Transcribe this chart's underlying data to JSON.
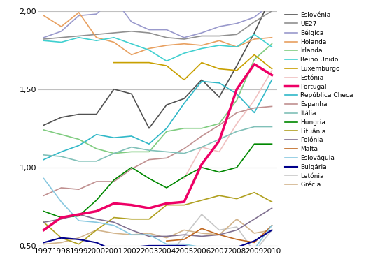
{
  "years": [
    1997,
    1998,
    1999,
    2000,
    2001,
    2002,
    2003,
    2004,
    2005,
    2006,
    2007,
    2008,
    2009,
    2010
  ],
  "series": [
    {
      "name": "Eslovénia",
      "values": [
        1.27,
        1.32,
        1.34,
        1.34,
        1.5,
        1.47,
        1.25,
        1.4,
        1.44,
        1.56,
        1.45,
        1.65,
        1.86,
        2.1
      ],
      "color": "#505050",
      "lw": 1.2,
      "zorder": 3
    },
    {
      "name": "UE27",
      "values": [
        1.82,
        1.83,
        1.84,
        1.85,
        1.86,
        1.87,
        1.86,
        1.83,
        1.82,
        1.84,
        1.84,
        1.85,
        1.93,
        2.0
      ],
      "color": "#909090",
      "lw": 1.2,
      "zorder": 3
    },
    {
      "name": "Bélgica",
      "values": [
        1.83,
        1.87,
        1.97,
        1.98,
        2.08,
        1.93,
        1.88,
        1.88,
        1.83,
        1.86,
        1.9,
        1.92,
        1.96,
        2.05
      ],
      "color": "#9999cc",
      "lw": 1.2,
      "zorder": 3
    },
    {
      "name": "Holanda",
      "values": [
        1.97,
        1.9,
        1.99,
        1.83,
        1.8,
        1.72,
        1.76,
        1.78,
        1.79,
        1.78,
        1.81,
        1.77,
        1.82,
        1.83
      ],
      "color": "#e8a060",
      "lw": 1.2,
      "zorder": 3
    },
    {
      "name": "Irlanda",
      "values": [
        1.24,
        1.21,
        1.18,
        1.12,
        1.09,
        1.1,
        1.1,
        1.23,
        1.25,
        1.25,
        1.28,
        1.43,
        1.69,
        1.79
      ],
      "color": "#80cc80",
      "lw": 1.2,
      "zorder": 3
    },
    {
      "name": "Reino Unido",
      "values": [
        1.81,
        1.8,
        1.83,
        1.81,
        1.83,
        1.79,
        1.75,
        1.68,
        1.73,
        1.76,
        1.78,
        1.77,
        1.85,
        1.77
      ],
      "color": "#40d0d0",
      "lw": 1.2,
      "zorder": 3
    },
    {
      "name": "Luxemburgo",
      "values": [
        null,
        null,
        null,
        null,
        1.67,
        1.67,
        1.67,
        1.65,
        1.56,
        1.67,
        1.63,
        1.62,
        1.72,
        1.63
      ],
      "color": "#c8a000",
      "lw": 1.2,
      "zorder": 3
    },
    {
      "name": "Estónia",
      "values": [
        null,
        null,
        null,
        null,
        null,
        null,
        null,
        null,
        0.93,
        1.13,
        1.1,
        1.28,
        1.43,
        1.62
      ],
      "color": "#f0c0c0",
      "lw": 1.2,
      "zorder": 2
    },
    {
      "name": "Portugal",
      "values": [
        0.6,
        0.68,
        0.7,
        0.72,
        0.77,
        0.76,
        0.74,
        0.77,
        0.78,
        1.02,
        1.17,
        1.5,
        1.66,
        1.59
      ],
      "color": "#ee0066",
      "lw": 2.5,
      "zorder": 5
    },
    {
      "name": "República Checa",
      "values": [
        1.05,
        1.1,
        1.14,
        1.21,
        1.19,
        1.2,
        1.15,
        1.25,
        1.41,
        1.55,
        1.54,
        1.47,
        1.35,
        1.56
      ],
      "color": "#30b8c8",
      "lw": 1.2,
      "zorder": 3
    },
    {
      "name": "Espanha",
      "values": [
        0.82,
        0.87,
        0.86,
        0.91,
        0.91,
        0.99,
        1.05,
        1.06,
        1.12,
        1.2,
        1.27,
        1.35,
        1.38,
        1.39
      ],
      "color": "#c09090",
      "lw": 1.2,
      "zorder": 3
    },
    {
      "name": "Itália",
      "values": [
        1.08,
        1.07,
        1.04,
        1.04,
        1.09,
        1.13,
        1.11,
        1.1,
        1.09,
        1.13,
        1.18,
        1.23,
        1.26,
        1.26
      ],
      "color": "#80c0b8",
      "lw": 1.2,
      "zorder": 3
    },
    {
      "name": "Hungria",
      "values": [
        0.72,
        0.68,
        0.69,
        0.79,
        0.92,
        1.0,
        0.93,
        0.87,
        0.94,
        1.0,
        0.97,
        1.0,
        1.15,
        1.15
      ],
      "color": "#008800",
      "lw": 1.2,
      "zorder": 3
    },
    {
      "name": "Lituânia",
      "values": [
        0.65,
        0.55,
        0.51,
        0.6,
        0.68,
        0.67,
        0.67,
        0.76,
        0.76,
        0.79,
        0.82,
        0.8,
        0.84,
        0.78
      ],
      "color": "#b0a020",
      "lw": 1.2,
      "zorder": 3
    },
    {
      "name": "Polónia",
      "values": [
        0.65,
        0.67,
        0.7,
        0.67,
        0.65,
        0.6,
        0.56,
        0.56,
        0.57,
        0.56,
        0.57,
        0.6,
        0.67,
        0.74
      ],
      "color": "#807090",
      "lw": 1.2,
      "zorder": 3
    },
    {
      "name": "Malta",
      "values": [
        null,
        null,
        null,
        null,
        null,
        null,
        null,
        0.53,
        0.54,
        0.61,
        0.57,
        0.54,
        0.52,
        0.63
      ],
      "color": "#c06820",
      "lw": 1.2,
      "zorder": 3
    },
    {
      "name": "Eslováquia",
      "values": [
        0.93,
        0.78,
        0.66,
        0.65,
        0.63,
        0.57,
        0.57,
        0.51,
        0.51,
        0.49,
        0.46,
        0.47,
        0.48,
        0.63
      ],
      "color": "#88c8e0",
      "lw": 1.2,
      "zorder": 3
    },
    {
      "name": "Bulgária",
      "values": [
        0.52,
        0.55,
        0.54,
        0.52,
        0.47,
        0.49,
        0.5,
        0.5,
        0.5,
        0.48,
        0.45,
        0.49,
        0.53,
        0.6
      ],
      "color": "#00008B",
      "lw": 1.5,
      "zorder": 3
    },
    {
      "name": "Letónia",
      "values": [
        0.44,
        0.44,
        0.38,
        0.44,
        0.41,
        0.42,
        0.38,
        0.42,
        0.56,
        0.7,
        0.6,
        0.62,
        0.46,
        0.6
      ],
      "color": "#c8c8c8",
      "lw": 1.2,
      "zorder": 2
    },
    {
      "name": "Grécia",
      "values": [
        0.51,
        0.52,
        0.55,
        0.6,
        0.58,
        0.57,
        0.58,
        0.55,
        0.6,
        0.58,
        0.57,
        0.67,
        0.58,
        0.6
      ],
      "color": "#d2b48c",
      "lw": 1.2,
      "zorder": 2
    }
  ],
  "ylim": [
    0.5,
    2.0
  ],
  "yticks": [
    0.5,
    1.0,
    1.5,
    2.0
  ],
  "ytick_labels": [
    "0,50",
    "1,00",
    "1,50",
    "2,00"
  ],
  "bg_color": "#ffffff",
  "grid_color": "#c0c0c0"
}
